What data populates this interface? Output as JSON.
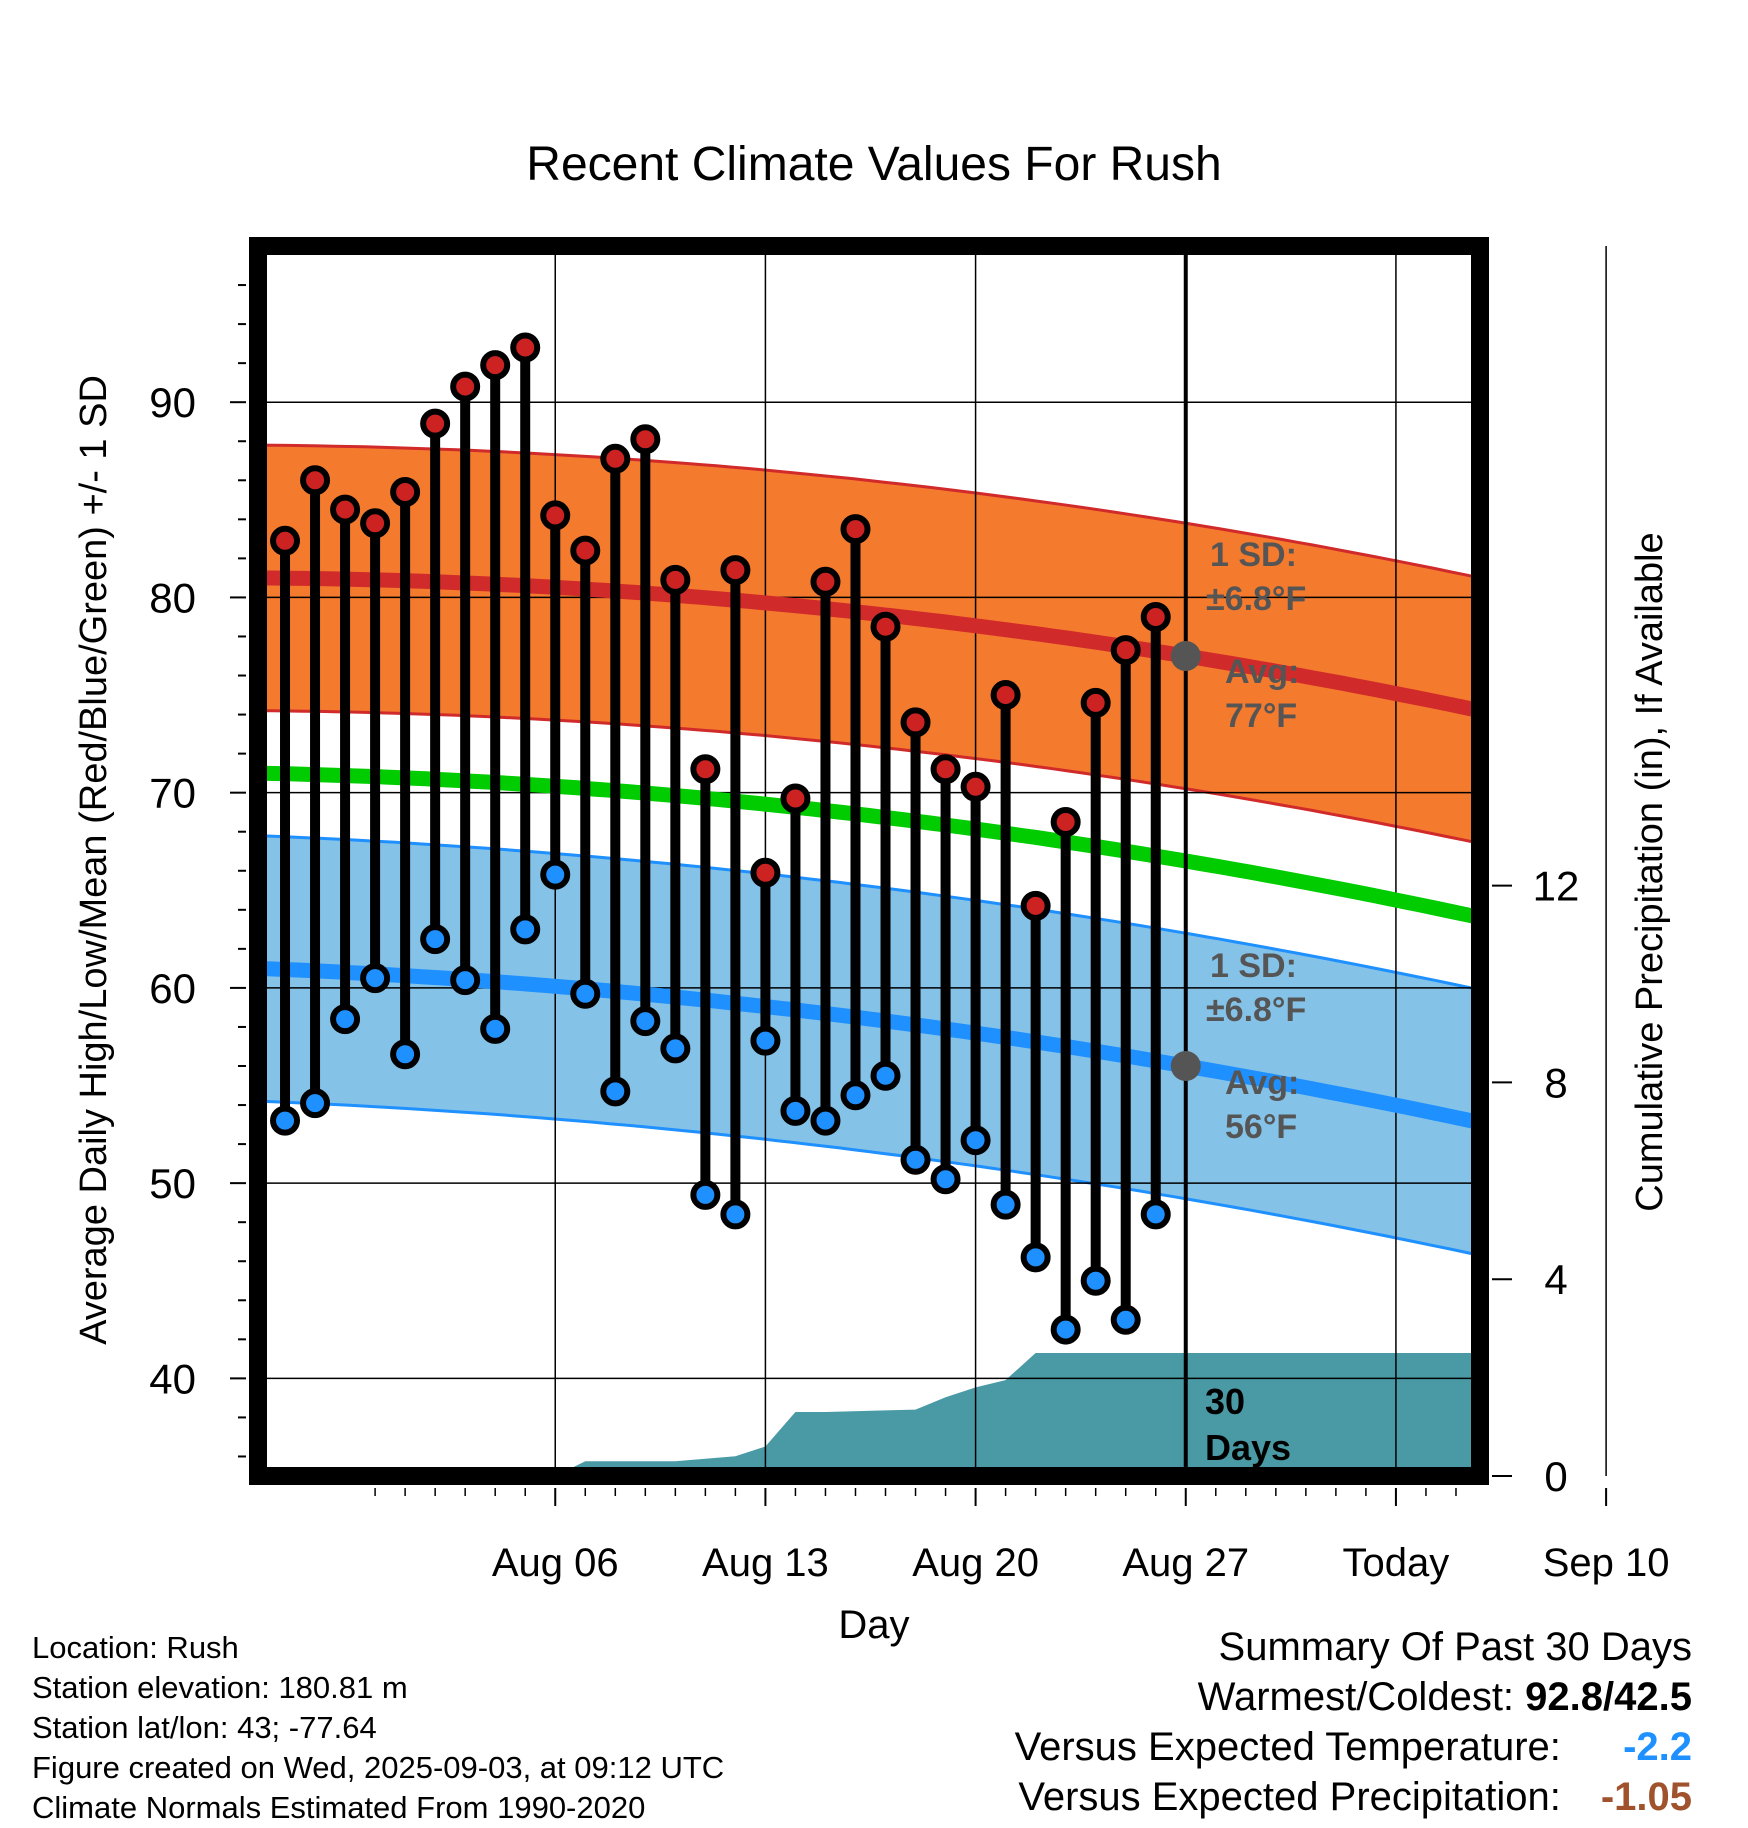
{
  "chart_data": {
    "type": "line",
    "title": "Recent Climate Values For Rush",
    "xlabel": "Day",
    "ylabel_left": "Average Daily High/Low/Mean (Red/Blue/Green) +/- 1 SD",
    "ylabel_right": "Cumulative Precipitation (in), If Available",
    "x_ticks": [
      "Aug 06",
      "Aug 13",
      "Aug 20",
      "Aug 27",
      "Today",
      "Sep 10"
    ],
    "y_left_ticks": [
      40,
      50,
      60,
      70,
      80,
      90
    ],
    "y_left_range": [
      35,
      98
    ],
    "y_right_ticks": [
      0,
      4,
      8,
      12
    ],
    "y_right_range": [
      0,
      25
    ],
    "x_day_range": [
      -30.9,
      9.8
    ],
    "grid": true,
    "days_offset": [
      -30,
      -29,
      -28,
      -27,
      -26,
      -25,
      -24,
      -23,
      -22,
      -21,
      -20,
      -19,
      -18,
      -17,
      -16,
      -15,
      -14,
      -13,
      -12,
      -11,
      -10,
      -9,
      -8,
      -7,
      -6,
      -5,
      -4,
      -3,
      -2,
      -1
    ],
    "series": [
      {
        "name": "High",
        "color": "#cc2222",
        "values": [
          82.9,
          86.0,
          84.5,
          83.8,
          85.4,
          88.9,
          90.8,
          91.9,
          92.8,
          84.2,
          82.4,
          87.1,
          88.1,
          80.9,
          71.2,
          81.4,
          65.9,
          69.7,
          80.8,
          83.5,
          78.5,
          73.6,
          71.2,
          70.3,
          75.0,
          64.2,
          68.5,
          74.6,
          77.3,
          79.0
        ]
      },
      {
        "name": "Low",
        "color": "#1e90ff",
        "values": [
          53.2,
          54.1,
          58.4,
          60.5,
          56.6,
          62.5,
          60.4,
          57.9,
          63.0,
          65.8,
          59.7,
          54.7,
          58.3,
          56.9,
          49.4,
          48.4,
          57.3,
          53.7,
          53.2,
          54.5,
          55.5,
          51.2,
          50.2,
          52.2,
          48.9,
          46.2,
          42.5,
          45.0,
          43.0,
          48.4
        ]
      }
    ],
    "normals": {
      "high_avg": [
        81.0,
        77.0,
        74.2
      ],
      "low_avg": [
        61.0,
        56.0,
        53.1
      ],
      "mean_avg": [
        71.0,
        66.5,
        63.6
      ],
      "high_sd": 6.8,
      "low_sd": 6.8
    },
    "precip_cumulative": {
      "days": [
        -30.9,
        -21,
        -20,
        -17,
        -15,
        -14,
        -13,
        -12,
        -9,
        -8,
        -7,
        -6,
        -5,
        -4,
        -3,
        9.8
      ],
      "values": [
        0,
        0,
        0.3,
        0.3,
        0.4,
        0.6,
        1.3,
        1.3,
        1.35,
        1.6,
        1.8,
        1.95,
        2.5,
        2.5,
        2.5,
        2.5
      ]
    },
    "annotations": {
      "high_sd": {
        "line1": "1 SD:",
        "line2": "±6.8°F"
      },
      "high_avg": {
        "line1": "Avg:",
        "line2": "77°F"
      },
      "low_sd": {
        "line1": "1 SD:",
        "line2": "±6.8°F"
      },
      "low_avg": {
        "line1": "Avg:",
        "line2": "56°F"
      },
      "days": {
        "line1": "30",
        "line2": "Days"
      }
    },
    "colors": {
      "high_band": "#f47a2e",
      "high_line": "#d12a2a",
      "low_band": "#85c2e8",
      "low_line": "#1e90ff",
      "mean_line": "#00cc00",
      "precip": "#4a9aa5",
      "annotation": "#555555"
    }
  },
  "footer": {
    "location": "Location: Rush",
    "elevation": "Station elevation: 180.81 m",
    "latlon": "Station lat/lon: 43; -77.64",
    "created": "Figure created on Wed, 2025-09-03, at 09:12 UTC",
    "normals": "Climate Normals Estimated From 1990-2020"
  },
  "summary": {
    "title": "Summary Of Past 30 Days",
    "warmest_label": "Warmest/Coldest:",
    "warmest_value": "92.8/42.5",
    "temp_label": "Versus Expected Temperature:",
    "temp_value": "-2.2",
    "temp_color": "#1e90ff",
    "precip_label": "Versus Expected Precipitation:",
    "precip_value": "-1.05",
    "precip_color": "#a0522d"
  }
}
